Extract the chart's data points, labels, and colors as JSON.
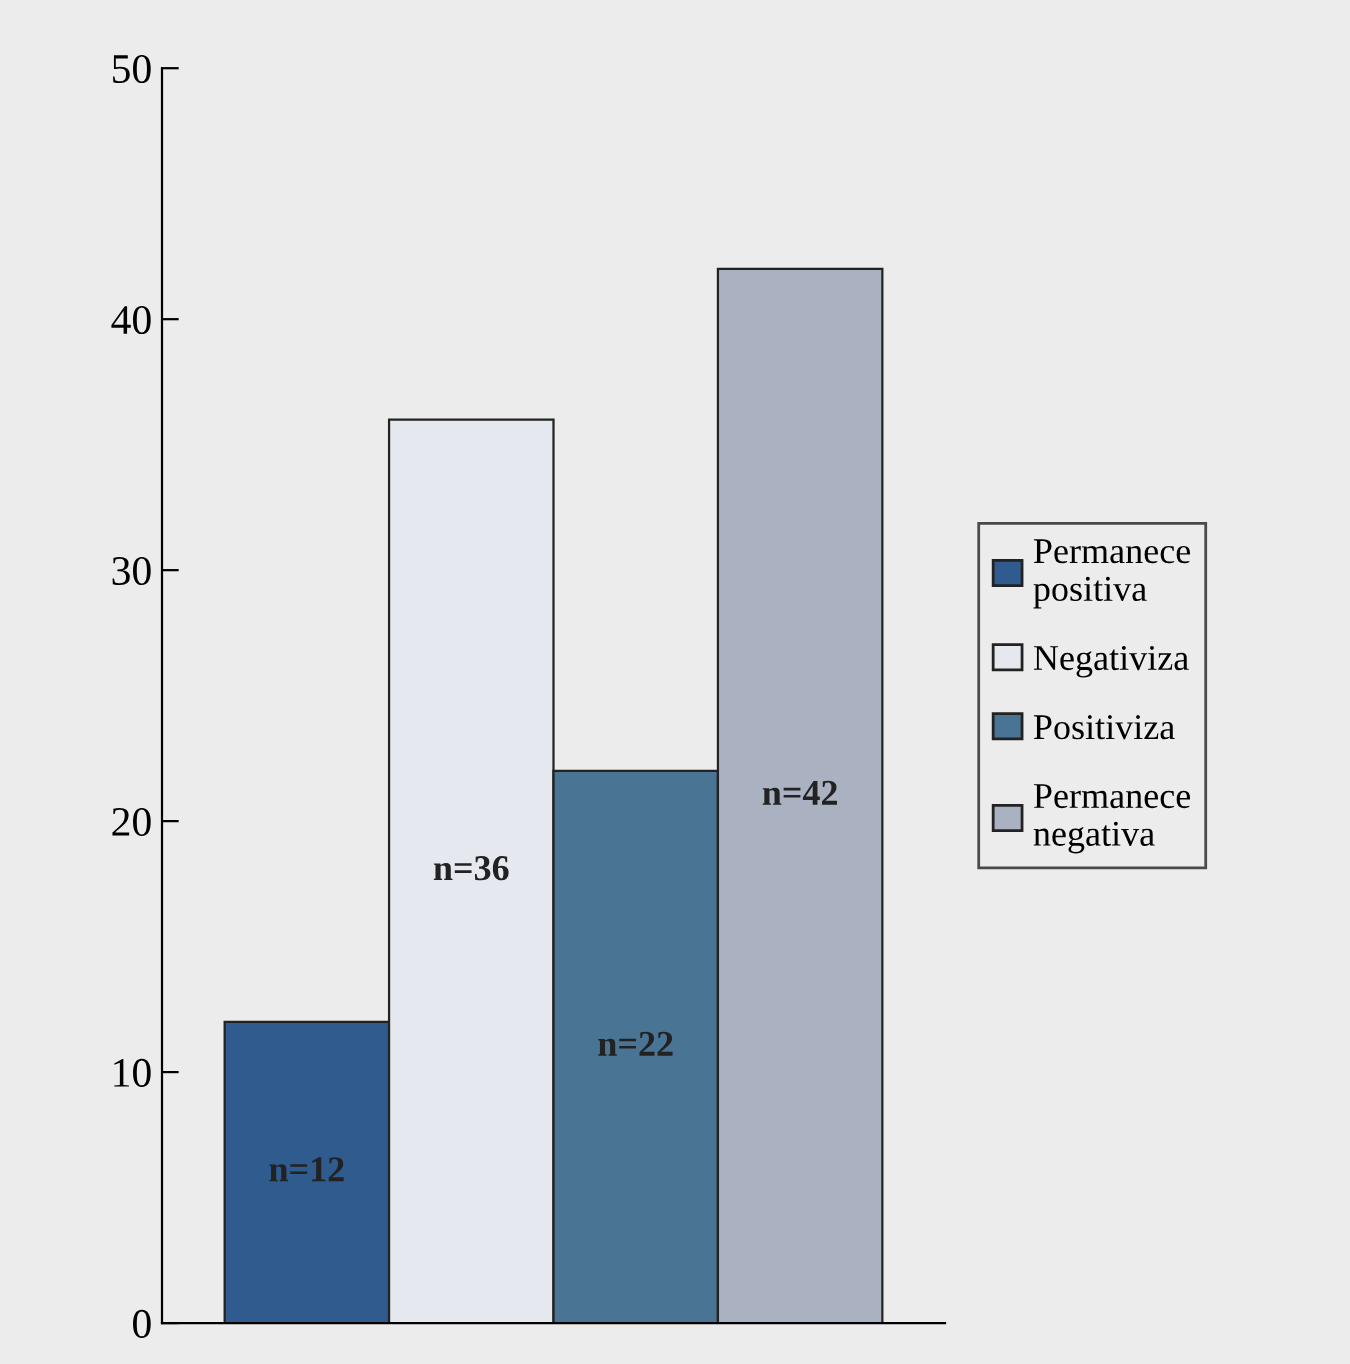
{
  "chart_data": {
    "type": "bar",
    "categories": [
      null
    ],
    "series": [
      {
        "name": "Permanece positiva",
        "color": "#2f5b8e",
        "values": [
          12
        ],
        "value_labels": [
          "n=12"
        ]
      },
      {
        "name": "Negativiza",
        "color": "#e6e8f0",
        "values": [
          36
        ],
        "value_labels": [
          "n=36"
        ]
      },
      {
        "name": "Positiviza",
        "color": "#4a7494",
        "values": [
          22
        ],
        "value_labels": [
          "n=22"
        ]
      },
      {
        "name": "Permanece negativa",
        "color": "#aab2c2",
        "values": [
          42
        ],
        "value_labels": [
          "n=42"
        ]
      }
    ],
    "ylim": [
      0,
      50
    ],
    "yticks": [
      0,
      10,
      20,
      30,
      40,
      50
    ],
    "grid": false,
    "legend": "right"
  }
}
